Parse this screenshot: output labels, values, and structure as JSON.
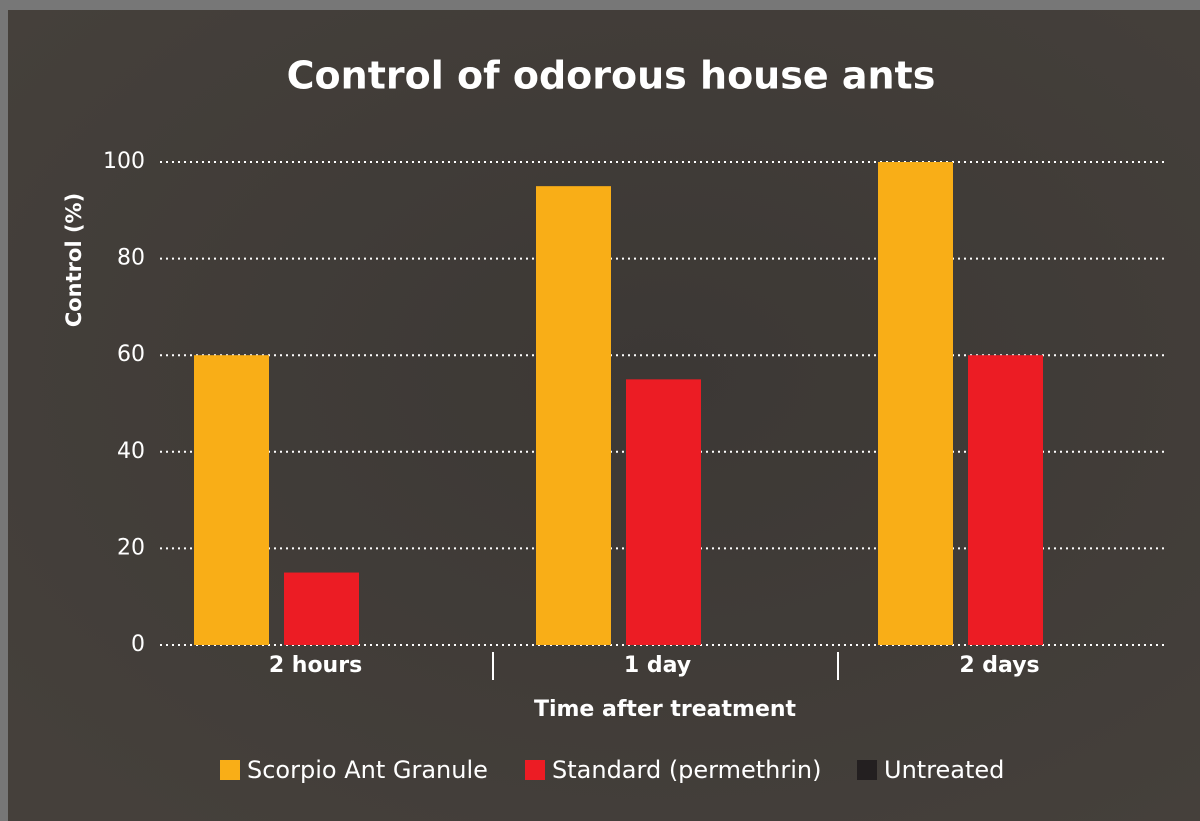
{
  "chart_data": {
    "type": "bar",
    "title": "Control of odorous house ants",
    "x_label": "Time after treatment",
    "y_label": "Control (%)",
    "categories": [
      "2 hours",
      "1 day",
      "2 days"
    ],
    "series": [
      {
        "name": "Scorpio Ant Granule",
        "color": "#f9ae17",
        "values": [
          60,
          95,
          100
        ]
      },
      {
        "name": "Standard (permethrin)",
        "color": "#ec1c24",
        "values": [
          15,
          55,
          60
        ]
      },
      {
        "name": "Untreated",
        "color": "#231f20",
        "values": [
          0,
          0,
          0
        ]
      }
    ],
    "ylim": [
      0,
      100
    ],
    "yticks": [
      0,
      20,
      40,
      60,
      80,
      100
    ],
    "grid": true,
    "legend": "bottom"
  }
}
